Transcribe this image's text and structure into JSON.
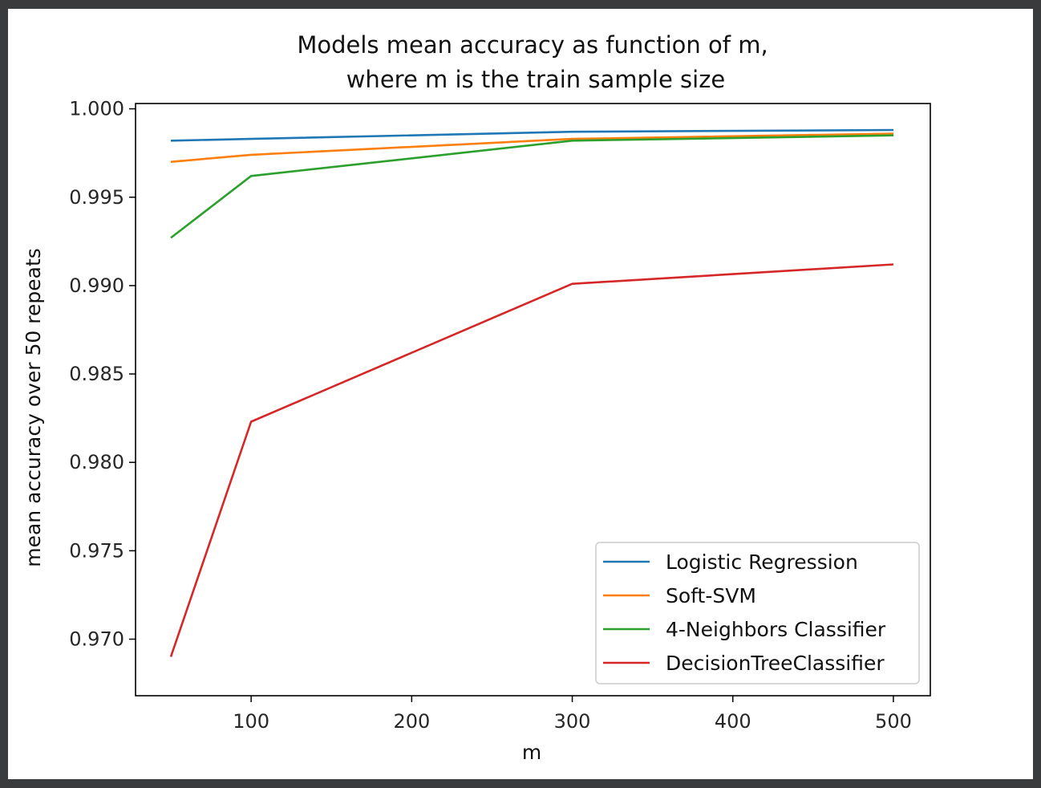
{
  "chart_data": {
    "type": "line",
    "title": "Models mean accuracy as function of m,",
    "subtitle": "where m is the train sample size",
    "xlabel": "m",
    "ylabel": "mean accuracy over 50 repeats",
    "x": [
      50,
      100,
      300,
      500
    ],
    "xlim": [
      28,
      523
    ],
    "ylim": [
      0.9668,
      1.0003
    ],
    "xticks": [
      100,
      200,
      300,
      400,
      500
    ],
    "xtick_labels": [
      "100",
      "200",
      "300",
      "400",
      "500"
    ],
    "yticks": [
      0.97,
      0.975,
      0.98,
      0.985,
      0.99,
      0.995,
      1.0
    ],
    "ytick_labels": [
      "0.970",
      "0.975",
      "0.980",
      "0.985",
      "0.990",
      "0.995",
      "1.000"
    ],
    "grid": false,
    "legend_position": "lower-right",
    "series": [
      {
        "name": "Logistic Regression",
        "color": "#1f77b4",
        "values": [
          0.9982,
          0.9983,
          0.9987,
          0.9988
        ]
      },
      {
        "name": "Soft-SVM",
        "color": "#ff7f0e",
        "values": [
          0.997,
          0.9974,
          0.9983,
          0.9986
        ]
      },
      {
        "name": "4-Neighbors Classifier",
        "color": "#2ca02c",
        "values": [
          0.9927,
          0.9962,
          0.9982,
          0.9985
        ]
      },
      {
        "name": "DecisionTreeClassifier",
        "color": "#d62728",
        "values": [
          0.969,
          0.9823,
          0.9901,
          0.9912
        ]
      }
    ]
  }
}
